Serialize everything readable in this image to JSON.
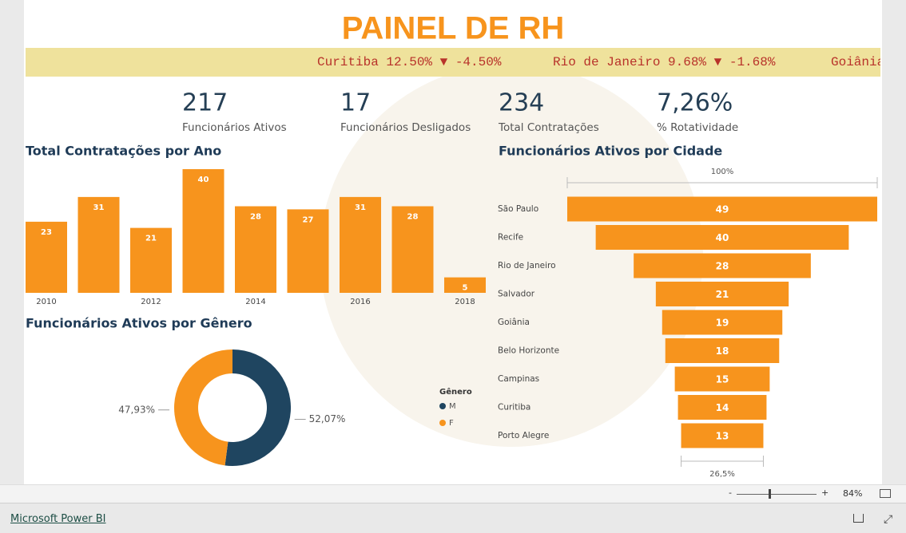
{
  "header": {
    "title": "PAINEL DE RH"
  },
  "ticker": [
    "Curitiba 12.50% ▼ -4.50%",
    "Rio de Janeiro 9.68% ▼ -1.68%",
    "Goiânia"
  ],
  "kpis": [
    {
      "value": "217",
      "label": "Funcionários Ativos"
    },
    {
      "value": "17",
      "label": "Funcionários Desligados"
    },
    {
      "value": "234",
      "label": "Total Contratações"
    },
    {
      "value": "7,26%",
      "label": "% Rotatividade"
    }
  ],
  "chart_data": [
    {
      "type": "bar",
      "title": "Total Contratações por Ano",
      "categories": [
        "2010",
        null,
        "2012",
        null,
        "2014",
        null,
        "2016",
        null,
        "2018"
      ],
      "values": [
        23,
        31,
        21,
        40,
        28,
        27,
        31,
        28,
        5
      ],
      "color": "#f7941d"
    },
    {
      "type": "donut",
      "title": "Funcionários Ativos por Gênero",
      "legend_title": "Gênero",
      "categories": [
        "M",
        "F"
      ],
      "values": [
        52.07,
        47.93
      ],
      "value_labels": [
        "52,07%",
        "47,93%"
      ],
      "colors": [
        "#1f4560",
        "#f7941d"
      ]
    },
    {
      "type": "funnel",
      "title": "Funcionários Ativos por Cidade",
      "categories": [
        "São Paulo",
        "Recife",
        "Rio de Janeiro",
        "Salvador",
        "Goiânia",
        "Belo Horizonte",
        "Campinas",
        "Curitiba",
        "Porto Alegre"
      ],
      "values": [
        49,
        40,
        28,
        21,
        19,
        18,
        15,
        14,
        13
      ],
      "color": "#f7941d",
      "top_label": "100%",
      "bottom_label": "26,5%"
    }
  ],
  "footer": {
    "link": "Microsoft Power BI",
    "zoom": "84%",
    "zoom_out": "-",
    "zoom_in": "+"
  }
}
